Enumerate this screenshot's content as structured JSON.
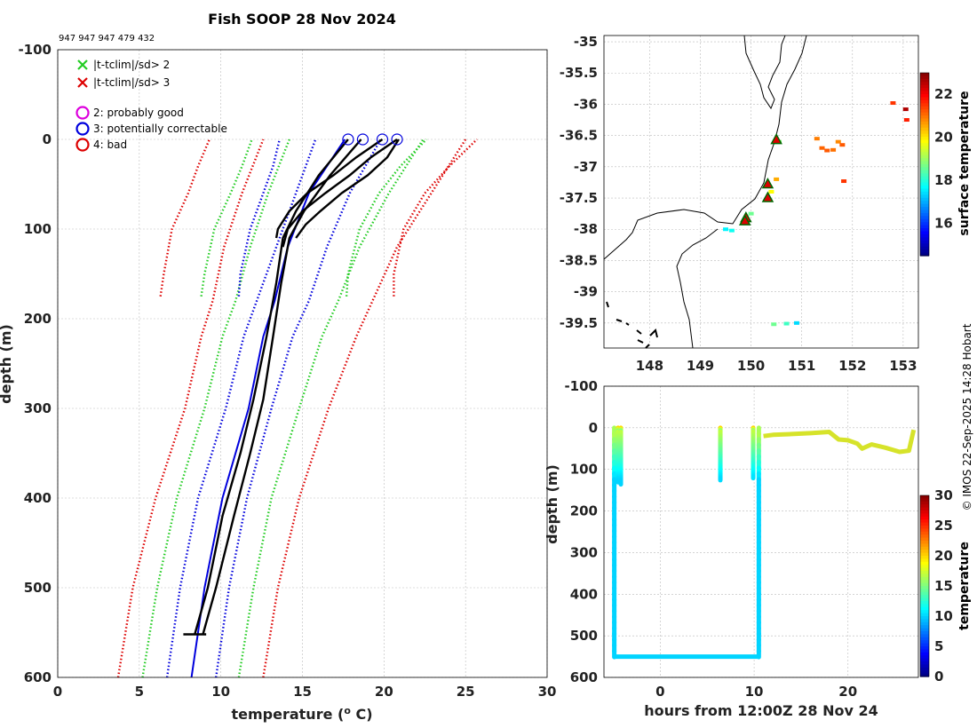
{
  "title": "Fish SOOP 28 Nov 2024",
  "subtitle": "947 947 947 479 432",
  "watermark": "© IMOS 22-Sep-2025 14:28 Hobart",
  "profile_legend": [
    {
      "marker": "x",
      "color": "#22cc22",
      "label": "|t-tclim|/sd> 2"
    },
    {
      "marker": "x",
      "color": "#dd0000",
      "label": "|t-tclim|/sd> 3"
    },
    {
      "marker": "o",
      "color": "#dd00dd",
      "label": "2: probably good"
    },
    {
      "marker": "o",
      "color": "#0000dd",
      "label": "3: potentially correctable"
    },
    {
      "marker": "o",
      "color": "#dd0000",
      "label": "4: bad"
    }
  ],
  "colorbar_map": {
    "label": "surface temperature",
    "ticks": [
      "16",
      "18",
      "20",
      "22"
    ],
    "range": [
      14.5,
      23
    ]
  },
  "colorbar_sect": {
    "label": "temperature",
    "ticks": [
      "0",
      "5",
      "10",
      "15",
      "20",
      "25",
      "30"
    ],
    "range": [
      0,
      30
    ]
  },
  "chart_data": [
    {
      "type": "line",
      "name": "profile",
      "xlabel": "temperature (o C)",
      "ylabel": "depth (m)",
      "xlim": [
        0,
        30
      ],
      "ylim": [
        600,
        -100
      ],
      "xticks": [
        "0",
        "5",
        "10",
        "15",
        "20",
        "25",
        "30"
      ],
      "yticks": [
        "-100",
        "0",
        "100",
        "200",
        "300",
        "400",
        "500",
        "600"
      ],
      "series": [
        {
          "name": "clim-3sd-left",
          "color": "#dd0000",
          "style": "dotted",
          "x": [
            3.7,
            4.6,
            6.0,
            7.8,
            8.8,
            9.5,
            10.2,
            11.3,
            12.6
          ],
          "y": [
            600,
            500,
            400,
            300,
            220,
            180,
            120,
            60,
            0
          ]
        },
        {
          "name": "clim-2sd-left",
          "color": "#22cc22",
          "style": "dotted",
          "x": [
            5.2,
            6.1,
            7.3,
            9.0,
            10.1,
            10.9,
            11.8,
            12.9,
            14.2
          ],
          "y": [
            600,
            500,
            400,
            300,
            220,
            180,
            120,
            60,
            0
          ]
        },
        {
          "name": "clim-1sd-left",
          "color": "#0000dd",
          "style": "dotted",
          "x": [
            6.7,
            7.5,
            8.6,
            10.3,
            11.4,
            12.2,
            13.4,
            14.6,
            15.8
          ],
          "y": [
            600,
            500,
            400,
            300,
            220,
            180,
            120,
            60,
            0
          ]
        },
        {
          "name": "clim-mean",
          "color": "#0000dd",
          "style": "solid",
          "x": [
            8.2,
            9.0,
            10.1,
            11.7,
            12.6,
            13.3,
            14.1,
            15.4,
            17.6
          ],
          "y": [
            600,
            500,
            400,
            300,
            220,
            180,
            120,
            60,
            0
          ]
        },
        {
          "name": "clim-1sd-right",
          "color": "#0000dd",
          "style": "dotted",
          "x": [
            9.7,
            10.5,
            11.6,
            13.1,
            14.4,
            15.4,
            16.5,
            17.9,
            19.8
          ],
          "y": [
            600,
            500,
            400,
            300,
            220,
            180,
            120,
            60,
            0
          ]
        },
        {
          "name": "clim-2sd-right",
          "color": "#22cc22",
          "style": "dotted",
          "x": [
            11.1,
            12.0,
            13.1,
            14.8,
            16.2,
            17.2,
            18.5,
            20.3,
            22.4
          ],
          "y": [
            600,
            500,
            400,
            300,
            220,
            180,
            120,
            60,
            0
          ]
        },
        {
          "name": "clim-3sd-right",
          "color": "#dd0000",
          "style": "dotted",
          "x": [
            12.6,
            13.5,
            14.8,
            16.6,
            18.3,
            19.3,
            20.8,
            22.9,
            25.0
          ],
          "y": [
            600,
            500,
            400,
            300,
            220,
            180,
            120,
            60,
            0
          ]
        },
        {
          "name": "clim-a-red",
          "color": "#dd0000",
          "style": "dotted",
          "x": [
            6.3,
            6.5,
            7.0,
            8.0,
            8.6,
            9.3
          ],
          "y": [
            175,
            150,
            100,
            60,
            30,
            0
          ]
        },
        {
          "name": "clim-a-green",
          "color": "#22cc22",
          "style": "dotted",
          "x": [
            8.8,
            9.0,
            9.6,
            10.6,
            11.3,
            11.9
          ],
          "y": [
            175,
            150,
            100,
            60,
            30,
            0
          ]
        },
        {
          "name": "clim-a-blue",
          "color": "#0000dd",
          "style": "dotted",
          "x": [
            11.1,
            11.2,
            11.8,
            12.6,
            13.2,
            13.6
          ],
          "y": [
            175,
            150,
            100,
            60,
            30,
            0
          ]
        },
        {
          "name": "clim-b-red",
          "color": "#dd0000",
          "style": "dotted",
          "x": [
            20.6,
            20.6,
            21.2,
            22.5,
            24.0,
            25.7
          ],
          "y": [
            175,
            150,
            100,
            60,
            30,
            0
          ]
        },
        {
          "name": "clim-b-green",
          "color": "#22cc22",
          "style": "dotted",
          "x": [
            17.7,
            17.8,
            18.5,
            19.7,
            21.0,
            22.6
          ],
          "y": [
            175,
            150,
            100,
            60,
            30,
            0
          ]
        },
        {
          "name": "obs-1",
          "color": "#000000",
          "style": "solid",
          "x": [
            8.4,
            9.2,
            10.1,
            11.2,
            12.0,
            12.8,
            13.4,
            13.8,
            14.6,
            16.0,
            17.8
          ],
          "y": [
            552,
            500,
            420,
            350,
            290,
            220,
            160,
            110,
            80,
            40,
            0
          ]
        },
        {
          "name": "obs-2",
          "color": "#000000",
          "style": "solid",
          "x": [
            8.9,
            9.7,
            10.8,
            11.8,
            12.6,
            13.2,
            13.7,
            14.2,
            15.1,
            16.7,
            18.6
          ],
          "y": [
            552,
            500,
            420,
            350,
            290,
            220,
            160,
            110,
            80,
            40,
            0
          ]
        },
        {
          "name": "obs-3",
          "color": "#000000",
          "style": "solid",
          "x": [
            13.4,
            13.5,
            14.2,
            15.3,
            16.9,
            18.3,
            19.9
          ],
          "y": [
            110,
            100,
            80,
            60,
            40,
            20,
            0
          ]
        },
        {
          "name": "obs-4",
          "color": "#000000",
          "style": "solid",
          "x": [
            13.8,
            14.1,
            15.0,
            16.4,
            17.9,
            19.2,
            20.8
          ],
          "y": [
            120,
            100,
            80,
            60,
            40,
            20,
            0
          ]
        },
        {
          "name": "obs-5",
          "color": "#000000",
          "style": "solid",
          "x": [
            14.6,
            15.2,
            16.1,
            17.4,
            19.0,
            20.2,
            20.9
          ],
          "y": [
            110,
            95,
            80,
            60,
            40,
            20,
            0
          ]
        }
      ],
      "surface_markers_x": [
        17.8,
        18.7,
        19.9,
        20.8
      ]
    },
    {
      "type": "scatter",
      "name": "map",
      "xlim": [
        147.1,
        153.3
      ],
      "ylim": [
        -39.9,
        -34.9
      ],
      "xticks": [
        "148",
        "149",
        "150",
        "151",
        "152",
        "153"
      ],
      "yticks": [
        "-35",
        "-35.5",
        "-36",
        "-36.5",
        "-37",
        "-37.5",
        "-38",
        "-38.5",
        "-39",
        "-39.5"
      ],
      "stations": [
        {
          "lon": 150.5,
          "lat": -36.57
        },
        {
          "lon": 150.33,
          "lat": -37.28
        },
        {
          "lon": 150.33,
          "lat": -37.5
        },
        {
          "lon": 149.9,
          "lat": -37.82
        },
        {
          "lon": 149.88,
          "lat": -37.87
        }
      ],
      "sst_points": [
        {
          "lon": 149.5,
          "lat": -38.0,
          "t": 17.6
        },
        {
          "lon": 149.62,
          "lat": -38.02,
          "t": 17.8
        },
        {
          "lon": 150.0,
          "lat": -37.75,
          "t": 18.6
        },
        {
          "lon": 150.4,
          "lat": -37.4,
          "t": 19.8
        },
        {
          "lon": 150.5,
          "lat": -37.2,
          "t": 20.5
        },
        {
          "lon": 150.55,
          "lat": -36.6,
          "t": 18.8
        },
        {
          "lon": 151.3,
          "lat": -36.55,
          "t": 20.9
        },
        {
          "lon": 151.4,
          "lat": -36.7,
          "t": 21.1
        },
        {
          "lon": 151.5,
          "lat": -36.74,
          "t": 21.2
        },
        {
          "lon": 151.62,
          "lat": -36.73,
          "t": 21.0
        },
        {
          "lon": 151.72,
          "lat": -36.6,
          "t": 20.8
        },
        {
          "lon": 151.8,
          "lat": -36.65,
          "t": 21.2
        },
        {
          "lon": 151.83,
          "lat": -37.23,
          "t": 21.5
        },
        {
          "lon": 152.8,
          "lat": -35.98,
          "t": 21.5
        },
        {
          "lon": 153.05,
          "lat": -36.08,
          "t": 22.6
        },
        {
          "lon": 153.07,
          "lat": -36.25,
          "t": 21.7
        },
        {
          "lon": 150.45,
          "lat": -39.52,
          "t": 18.6
        },
        {
          "lon": 150.7,
          "lat": -39.51,
          "t": 18.2
        },
        {
          "lon": 150.9,
          "lat": -39.5,
          "t": 17.4
        }
      ]
    },
    {
      "type": "scatter",
      "name": "section",
      "xlabel": "hours from 12:00Z 28 Nov 24",
      "ylabel": "depth (m)",
      "xlim": [
        -6,
        27.5
      ],
      "ylim": [
        600,
        -100
      ],
      "xticks": [
        "0",
        "10",
        "20"
      ],
      "yticks": [
        "-100",
        "0",
        "100",
        "200",
        "300",
        "400",
        "500",
        "600"
      ],
      "casts": [
        {
          "hour": -4.9,
          "maxdepth": 550
        },
        {
          "hour": -4.5,
          "maxdepth": 130
        },
        {
          "hour": -4.2,
          "maxdepth": 135
        },
        {
          "hour": 6.4,
          "maxdepth": 125
        },
        {
          "hour": 9.9,
          "maxdepth": 120
        },
        {
          "hour": 10.5,
          "maxdepth": 550
        }
      ],
      "bottom_track": {
        "from": -4.9,
        "to": 10.5,
        "depth": 550,
        "t": 10
      },
      "surface_track": [
        {
          "hour": 11,
          "depth": 20
        },
        {
          "hour": 12,
          "depth": 17
        },
        {
          "hour": 14,
          "depth": 15
        },
        {
          "hour": 16,
          "depth": 13
        },
        {
          "hour": 18,
          "depth": 10
        },
        {
          "hour": 19,
          "depth": 28
        },
        {
          "hour": 20,
          "depth": 30
        },
        {
          "hour": 21,
          "depth": 38
        },
        {
          "hour": 21.5,
          "depth": 50
        },
        {
          "hour": 22.5,
          "depth": 40
        },
        {
          "hour": 24,
          "depth": 48
        },
        {
          "hour": 25.5,
          "depth": 58
        },
        {
          "hour": 26.5,
          "depth": 55
        },
        {
          "hour": 27,
          "depth": 5
        }
      ]
    }
  ]
}
